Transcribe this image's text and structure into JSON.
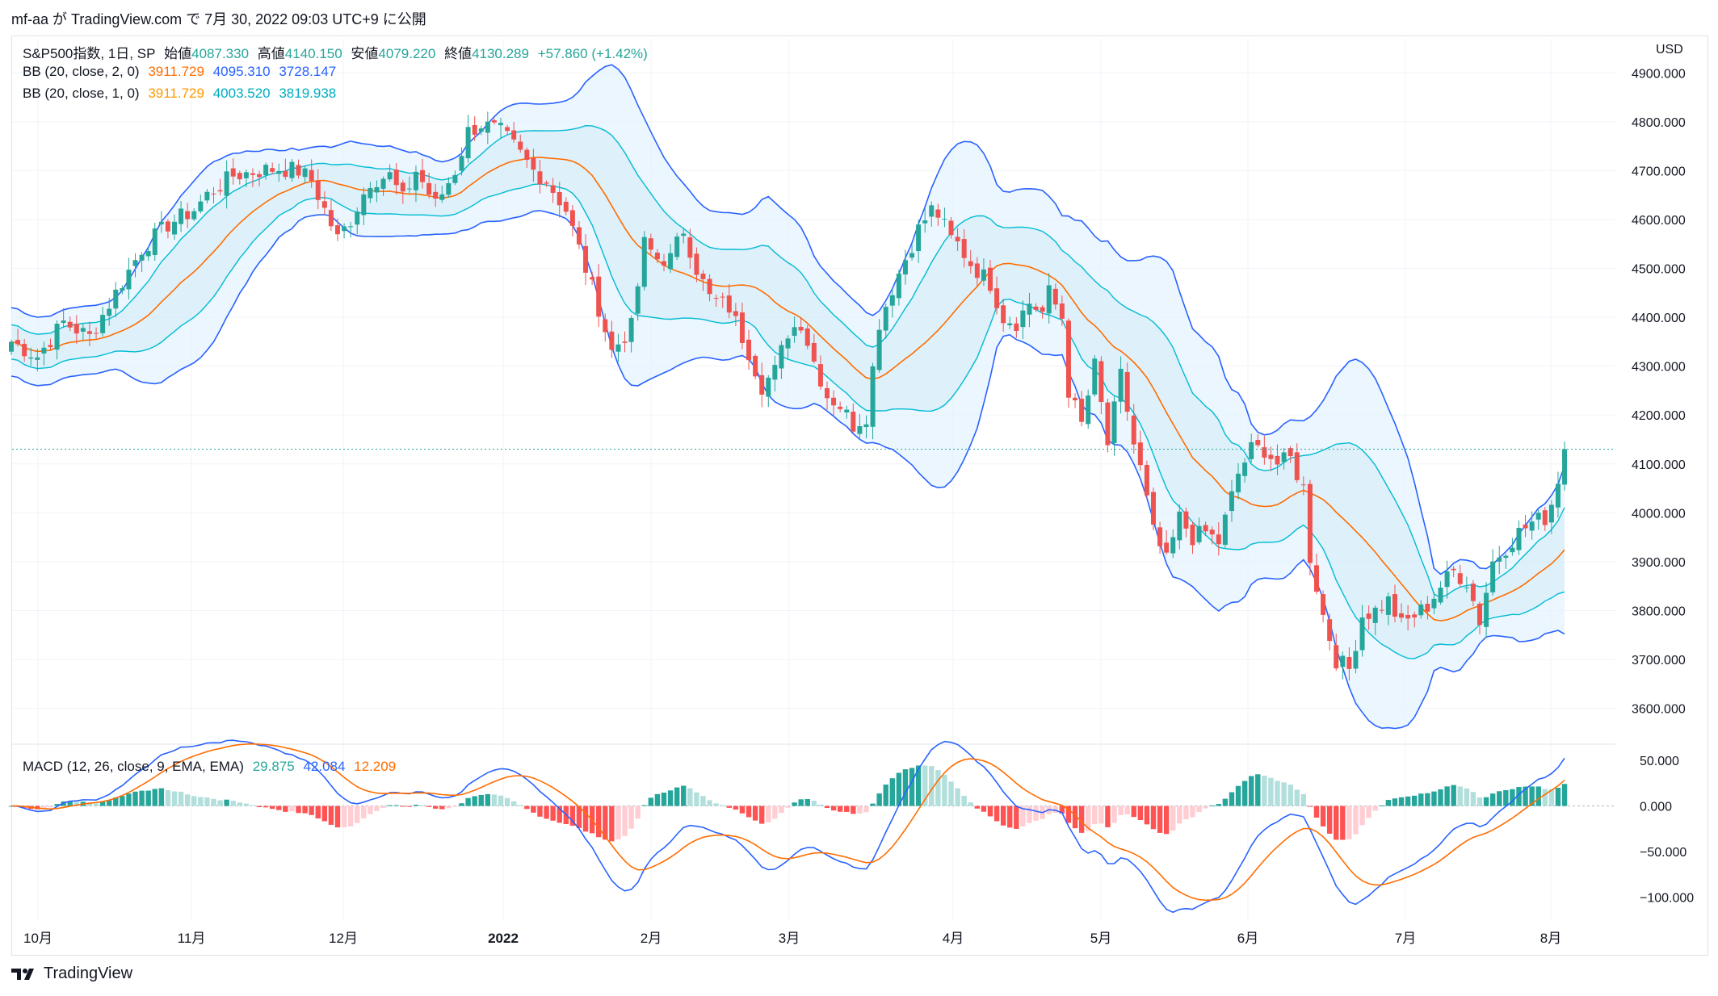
{
  "attribution": "mf-aa が TradingView.com で 7月 30, 2022 09:03 UTC+9 に公開",
  "brand": "TradingView",
  "currency": "USD",
  "legend_main": {
    "symbol": "S&P500指数, 1日, SP",
    "open_label": "始値",
    "open": "4087.330",
    "high_label": "高値",
    "high": "4140.150",
    "low_label": "安値",
    "low": "4079.220",
    "close_label": "終値",
    "close": "4130.289",
    "change": "+57.860 (+1.42%)"
  },
  "legend_bb2": {
    "label": "BB (20, close, 2, 0)",
    "basis": "3911.729",
    "upper": "4095.310",
    "lower": "3728.147"
  },
  "legend_bb1": {
    "label": "BB (20, close, 1, 0)",
    "basis": "3911.729",
    "upper": "4003.520",
    "lower": "3819.938"
  },
  "legend_macd": {
    "label": "MACD (12, 26, close, 9, EMA, EMA)",
    "hist": "29.875",
    "macd": "42.084",
    "signal": "12.209"
  },
  "colors": {
    "up": "#26a69a",
    "down": "#ef5350",
    "basis": "#ff6d00",
    "bb2": "#2962ff",
    "bb1": "#00bcd4",
    "fill2": "#e3f2fd",
    "fill1": "#cfe8f7",
    "macd": "#2962ff",
    "signal": "#ff6d00",
    "hist_up_strong": "#26a69a",
    "hist_up_weak": "#b2dfdb",
    "hist_dn_strong": "#ff5252",
    "hist_dn_weak": "#ffcdd2"
  },
  "chart_data": {
    "type": "candlestick",
    "price_axis": {
      "ticks": [
        "4900.000",
        "4800.000",
        "4700.000",
        "4600.000",
        "4500.000",
        "4400.000",
        "4300.000",
        "4200.000",
        "4100.000",
        "4000.000",
        "3900.000",
        "3800.000",
        "3700.000",
        "3600.000"
      ],
      "range": [
        3530,
        4950
      ]
    },
    "macd_axis": {
      "ticks": [
        "50.000",
        "0.000",
        "−50.000",
        "−100.000"
      ],
      "range": [
        -125,
        65
      ]
    },
    "x_labels": [
      "10月",
      "11月",
      "12月",
      "2022",
      "2月",
      "3月",
      "4月",
      "5月",
      "6月",
      "7月",
      "8月"
    ],
    "price_anchors": [
      [
        0,
        4350
      ],
      [
        4,
        4320
      ],
      [
        8,
        4390
      ],
      [
        12,
        4360
      ],
      [
        16,
        4450
      ],
      [
        20,
        4540
      ],
      [
        24,
        4590
      ],
      [
        28,
        4620
      ],
      [
        30,
        4650
      ],
      [
        34,
        4690
      ],
      [
        38,
        4700
      ],
      [
        41,
        4705
      ],
      [
        44,
        4700
      ],
      [
        46,
        4680
      ],
      [
        48,
        4620
      ],
      [
        50,
        4560
      ],
      [
        52,
        4600
      ],
      [
        55,
        4680
      ],
      [
        58,
        4690
      ],
      [
        60,
        4640
      ],
      [
        62,
        4700
      ],
      [
        65,
        4630
      ],
      [
        68,
        4700
      ],
      [
        70,
        4780
      ],
      [
        72,
        4795
      ],
      [
        75,
        4780
      ],
      [
        77,
        4750
      ],
      [
        80,
        4700
      ],
      [
        82,
        4680
      ],
      [
        85,
        4620
      ],
      [
        88,
        4500
      ],
      [
        90,
        4420
      ],
      [
        92,
        4330
      ],
      [
        95,
        4380
      ],
      [
        97,
        4550
      ],
      [
        99,
        4520
      ],
      [
        101,
        4520
      ],
      [
        103,
        4580
      ],
      [
        105,
        4500
      ],
      [
        107,
        4440
      ],
      [
        110,
        4420
      ],
      [
        113,
        4330
      ],
      [
        115,
        4260
      ],
      [
        117,
        4290
      ],
      [
        119,
        4370
      ],
      [
        121,
        4390
      ],
      [
        123,
        4310
      ],
      [
        125,
        4240
      ],
      [
        127,
        4220
      ],
      [
        129,
        4180
      ],
      [
        131,
        4200
      ],
      [
        133,
        4390
      ],
      [
        135,
        4460
      ],
      [
        137,
        4520
      ],
      [
        139,
        4580
      ],
      [
        141,
        4620
      ],
      [
        142,
        4610
      ],
      [
        144,
        4560
      ],
      [
        145,
        4550
      ],
      [
        147,
        4510
      ],
      [
        150,
        4470
      ],
      [
        152,
        4400
      ],
      [
        154,
        4390
      ],
      [
        156,
        4430
      ],
      [
        158,
        4410
      ],
      [
        159,
        4450
      ],
      [
        161,
        4400
      ],
      [
        162,
        4250
      ],
      [
        164,
        4180
      ],
      [
        166,
        4300
      ],
      [
        168,
        4140
      ],
      [
        170,
        4280
      ],
      [
        172,
        4140
      ],
      [
        173,
        4090
      ],
      [
        175,
        3960
      ],
      [
        177,
        3900
      ],
      [
        179,
        3990
      ],
      [
        181,
        3950
      ],
      [
        183,
        3960
      ],
      [
        185,
        3940
      ],
      [
        188,
        4080
      ],
      [
        190,
        4130
      ],
      [
        192,
        4130
      ],
      [
        194,
        4100
      ],
      [
        196,
        4110
      ],
      [
        198,
        4050
      ],
      [
        199,
        3910
      ],
      [
        201,
        3790
      ],
      [
        203,
        3700
      ],
      [
        205,
        3680
      ],
      [
        207,
        3790
      ],
      [
        209,
        3800
      ],
      [
        211,
        3820
      ],
      [
        213,
        3770
      ],
      [
        215,
        3790
      ],
      [
        217,
        3810
      ],
      [
        219,
        3850
      ],
      [
        221,
        3880
      ],
      [
        223,
        3860
      ],
      [
        225,
        3780
      ],
      [
        227,
        3900
      ],
      [
        229,
        3930
      ],
      [
        231,
        3960
      ],
      [
        233,
        3980
      ],
      [
        235,
        3990
      ],
      [
        236,
        4020
      ],
      [
        237,
        4070
      ],
      [
        238,
        4130
      ]
    ],
    "last_price": 4130.289
  }
}
